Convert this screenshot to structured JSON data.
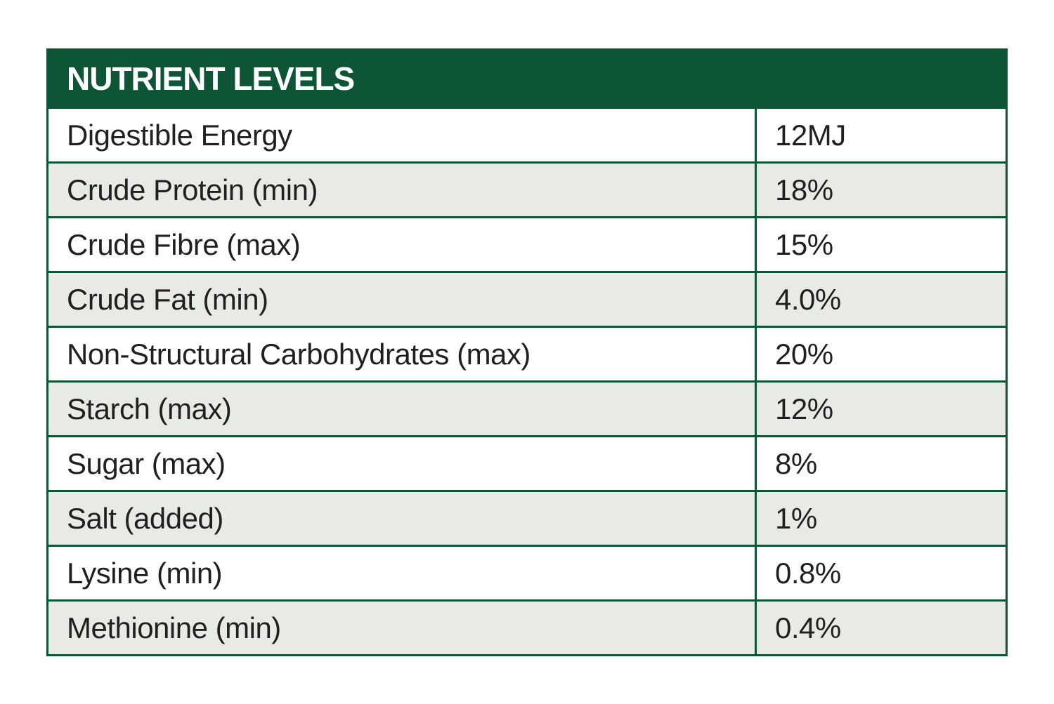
{
  "table": {
    "title": "NUTRIENT LEVELS",
    "rows": [
      [
        "Digestible Energy",
        "12MJ"
      ],
      [
        "Crude Protein (min)",
        "18%"
      ],
      [
        "Crude Fibre (max)",
        "15%"
      ],
      [
        "Crude Fat (min)",
        "4.0%"
      ],
      [
        "Non-Structural Carbohydrates (max)",
        "20%"
      ],
      [
        "Starch (max)",
        "12%"
      ],
      [
        "Sugar (max)",
        "8%"
      ],
      [
        "Salt (added)",
        "1%"
      ],
      [
        "Lysine (min)",
        "0.8%"
      ],
      [
        "Methionine (min)",
        "0.4%"
      ]
    ]
  }
}
